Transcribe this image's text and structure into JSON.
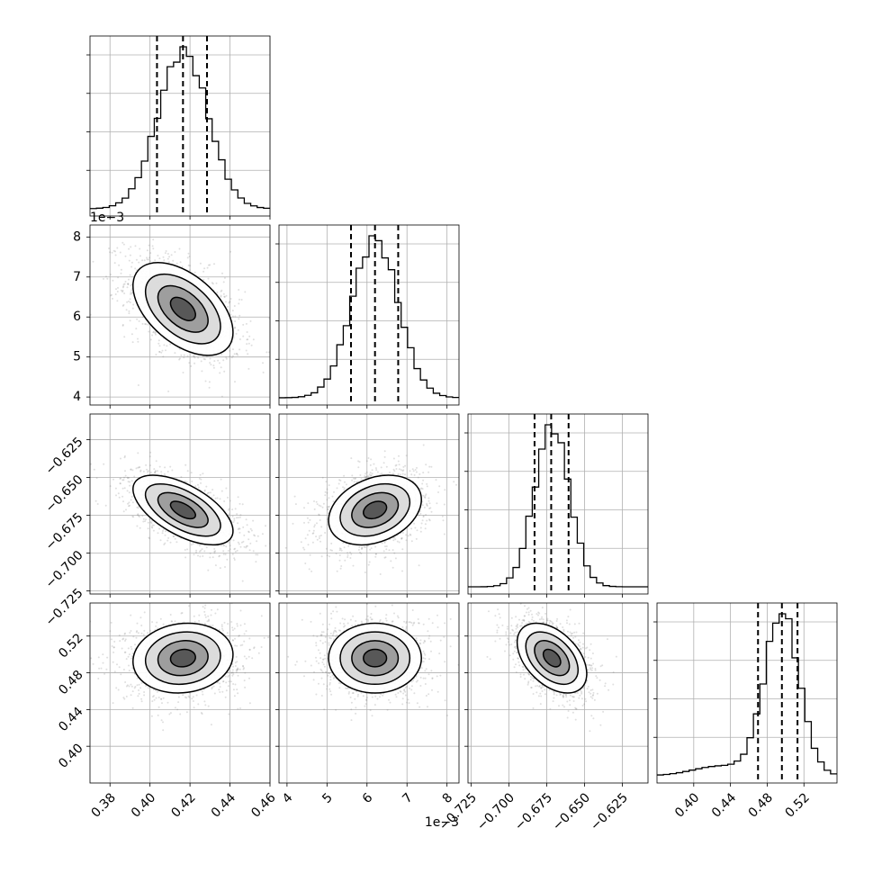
{
  "chart_data": {
    "type": "scatter",
    "variant": "corner-plot",
    "title": "",
    "grid": true,
    "parameters": [
      {
        "index": 0,
        "range": [
          0.37,
          0.46
        ],
        "offset_label": "",
        "ticks": [
          0.38,
          0.4,
          0.42,
          0.44,
          0.46
        ],
        "tick_labels": [
          "0.38",
          "0.40",
          "0.42",
          "0.44",
          "0.46"
        ],
        "mean": 0.4165,
        "sigma": 0.0125,
        "quantiles": [
          0.4035,
          0.4165,
          0.4285
        ]
      },
      {
        "index": 1,
        "range": [
          3.8,
          8.3
        ],
        "offset_label": "1e−3",
        "ticks": [
          4,
          5,
          6,
          7,
          8
        ],
        "tick_labels": [
          "4",
          "5",
          "6",
          "7",
          "8"
        ],
        "mean": 6.2,
        "sigma": 0.58,
        "quantiles": [
          5.6,
          6.2,
          6.78
        ]
      },
      {
        "index": 2,
        "range": [
          -0.727,
          -0.608
        ],
        "offset_label": "",
        "ticks": [
          -0.725,
          -0.7,
          -0.675,
          -0.65,
          -0.625
        ],
        "tick_labels": [
          "−0.725",
          "−0.700",
          "−0.675",
          "−0.650",
          "−0.625"
        ],
        "mean": -0.6715,
        "sigma": 0.0115,
        "quantiles": [
          -0.683,
          -0.672,
          -0.6605
        ]
      },
      {
        "index": 3,
        "range": [
          0.36,
          0.556
        ],
        "offset_label": "",
        "ticks": [
          0.4,
          0.44,
          0.48,
          0.52
        ],
        "tick_labels": [
          "0.40",
          "0.44",
          "0.48",
          "0.52"
        ],
        "mean": 0.496,
        "sigma": 0.019,
        "quantiles": [
          0.47,
          0.496,
          0.513
        ]
      }
    ],
    "correlations": [
      [
        1,
        -0.5,
        -0.6,
        0.1
      ],
      [
        -0.5,
        1,
        0.3,
        0.0
      ],
      [
        -0.6,
        0.3,
        1,
        -0.45
      ],
      [
        0.1,
        0.0,
        -0.45,
        1
      ]
    ],
    "contour_levels_sigma": [
      0.5,
      1.0,
      1.5,
      2.0
    ],
    "colors": {
      "points": "#808080",
      "lines": "#000000",
      "grid": "#b0b0b0"
    }
  }
}
